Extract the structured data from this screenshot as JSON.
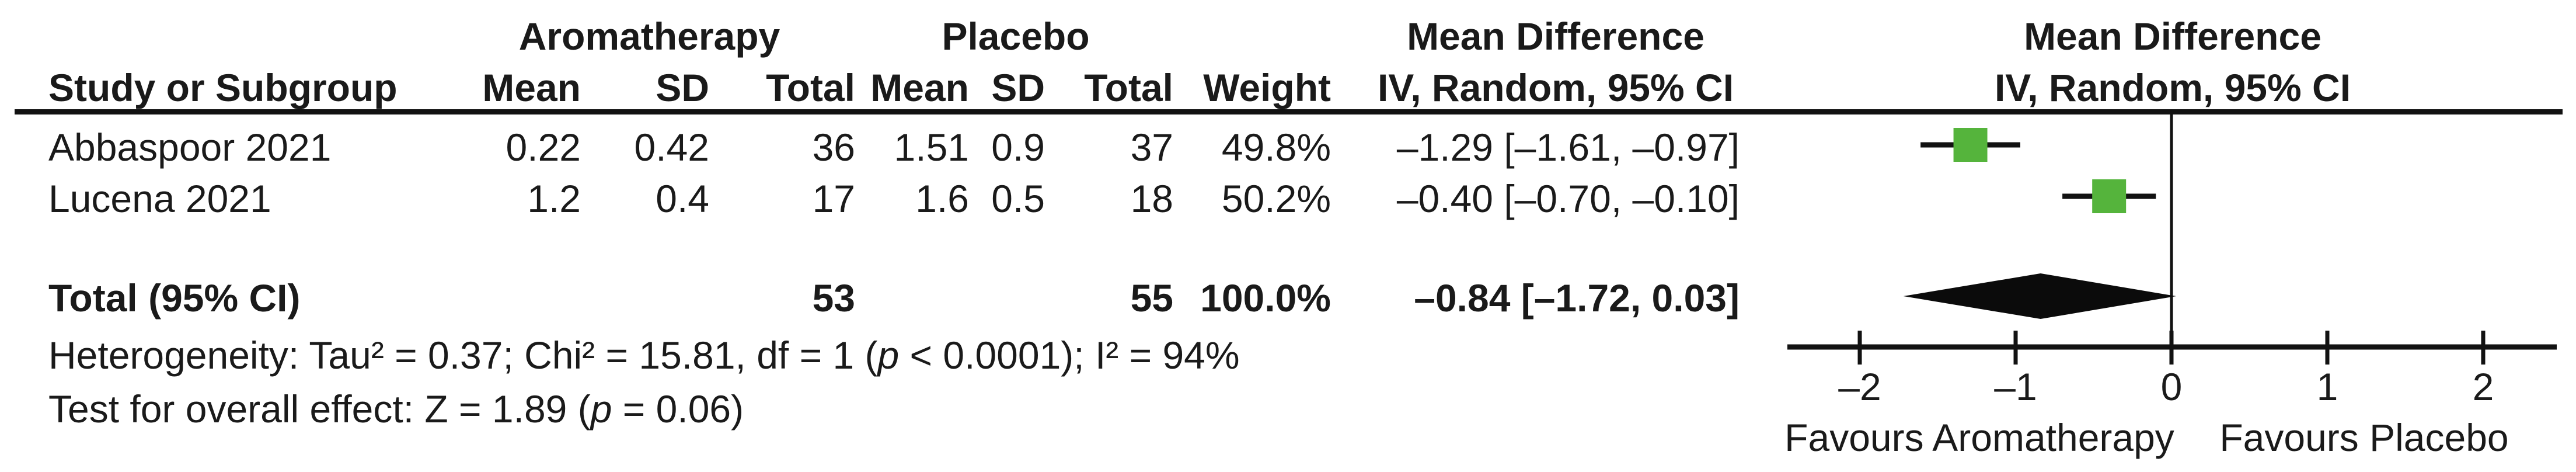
{
  "figure_type": "forest-plot",
  "colors": {
    "marker_green": "#55b43c",
    "line_black": "#121212",
    "text": "#1a1a1a"
  },
  "table": {
    "group_headers": {
      "treatment": "Aromatherapy",
      "control": "Placebo",
      "effect_left": "Mean Difference",
      "effect_right": "Mean Difference"
    },
    "col_headers": {
      "study": "Study or Subgroup",
      "mean_treatment": "Mean",
      "sd_treatment": "SD",
      "total_treatment": "Total",
      "mean_control": "Mean",
      "sd_control": "SD",
      "total_control": "Total",
      "weight": "Weight",
      "iv_left": "IV, Random, 95% CI",
      "iv_right": "IV, Random, 95% CI"
    },
    "rows": [
      {
        "study": "Abbaspoor 2021",
        "mean_treatment": "0.22",
        "sd_treatment": "0.42",
        "total_treatment": "36",
        "mean_control": "1.51",
        "sd_control": "0.9",
        "total_control": "37",
        "weight": "49.8%",
        "ci_text": "–1.29 [–1.61, –0.97]"
      },
      {
        "study": "Lucena 2021",
        "mean_treatment": "1.2",
        "sd_treatment": "0.4",
        "total_treatment": "17",
        "mean_control": "1.6",
        "sd_control": "0.5",
        "total_control": "18",
        "weight": "50.2%",
        "ci_text": "–0.40 [–0.70, –0.10]"
      }
    ],
    "total_row": {
      "label": "Total (95% CI)",
      "total_treatment": "53",
      "total_control": "55",
      "weight": "100.0%",
      "ci_text": "–0.84 [–1.72, 0.03]"
    }
  },
  "footnotes": {
    "heterogeneity_pre": "Heterogeneity: Tau² = 0.37; Chi² = 15.81, df = 1 (",
    "heterogeneity_p": "p",
    "heterogeneity_post": " < 0.0001); I² = 94%",
    "overall_pre": "Test for overall effect: Z = 1.89 (",
    "overall_p": "p",
    "overall_post": " = 0.06)"
  },
  "chart_data": {
    "type": "scatter",
    "subtype": "forest-plot",
    "title": "Mean Difference",
    "method": "IV, Random, 95% CI",
    "x_axis": {
      "ticks": [
        -2,
        -1,
        0,
        1,
        2
      ],
      "tick_labels": [
        "–2",
        "–1",
        "0",
        "1",
        "2"
      ],
      "range": [
        -2.45,
        2.45
      ],
      "left_label": "Favours Aromatherapy",
      "right_label": "Favours Placebo",
      "zero_reference_line": true
    },
    "studies": [
      {
        "name": "Abbaspoor 2021",
        "md": -1.29,
        "ci_low": -1.61,
        "ci_high": -0.97,
        "weight_pct": 49.8
      },
      {
        "name": "Lucena 2021",
        "md": -0.4,
        "ci_low": -0.7,
        "ci_high": -0.1,
        "weight_pct": 50.2
      }
    ],
    "total": {
      "label": "Total (95% CI)",
      "md": -0.84,
      "ci_low": -1.72,
      "ci_high": 0.03,
      "n_treatment": 53,
      "n_control": 55,
      "weight_pct": 100.0
    },
    "heterogeneity": {
      "tau2": 0.37,
      "chi2": 15.81,
      "df": 1,
      "p": "< 0.0001",
      "i2_pct": 94
    },
    "overall_effect": {
      "z": 1.89,
      "p": 0.06
    },
    "marker_color": "#55b43c"
  }
}
